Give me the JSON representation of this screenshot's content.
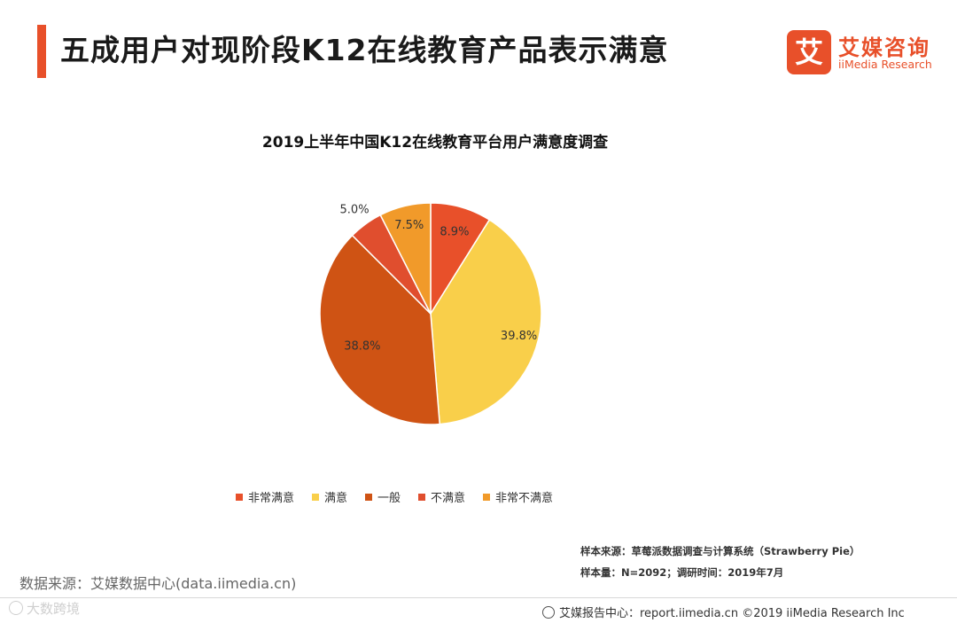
{
  "header": {
    "title": "五成用户对现阶段K12在线教育产品表示满意",
    "logo_mark": "艾",
    "logo_cn": "艾媒咨询",
    "logo_en": "iiMedia Research"
  },
  "colors": {
    "accent": "#e8502a",
    "非常满意": "#e8502a",
    "满意": "#f9cf4a",
    "一般": "#cf5314",
    "不满意": "#e04e2e",
    "非常不满意": "#f19a2a"
  },
  "chart_data": {
    "type": "pie",
    "title": "2019上半年中国K12在线教育平台用户满意度调查",
    "unit": "%",
    "slices": [
      {
        "label": "非常满意",
        "value": 8.9,
        "display": "8.9%",
        "color": "#e8502a"
      },
      {
        "label": "满意",
        "value": 39.8,
        "display": "39.8%",
        "color": "#f9cf4a"
      },
      {
        "label": "一般",
        "value": 38.8,
        "display": "38.8%",
        "color": "#cf5314"
      },
      {
        "label": "不满意",
        "value": 5.0,
        "display": "5.0%",
        "color": "#e04e2e"
      },
      {
        "label": "非常不满意",
        "value": 7.5,
        "display": "7.5%",
        "color": "#f19a2a"
      }
    ],
    "legend_position": "bottom"
  },
  "notes": {
    "sample_source": "样本来源：草莓派数据调查与计算系统（Strawberry  Pie）",
    "sample_size": "样本量：N=2092；调研时间：2019年7月"
  },
  "source": "数据来源：艾媒数据中心(data.iimedia.cn)",
  "watermark": "大数跨境",
  "footer": "艾媒报告中心：report.iimedia.cn  ©2019  iiMedia Research  Inc"
}
